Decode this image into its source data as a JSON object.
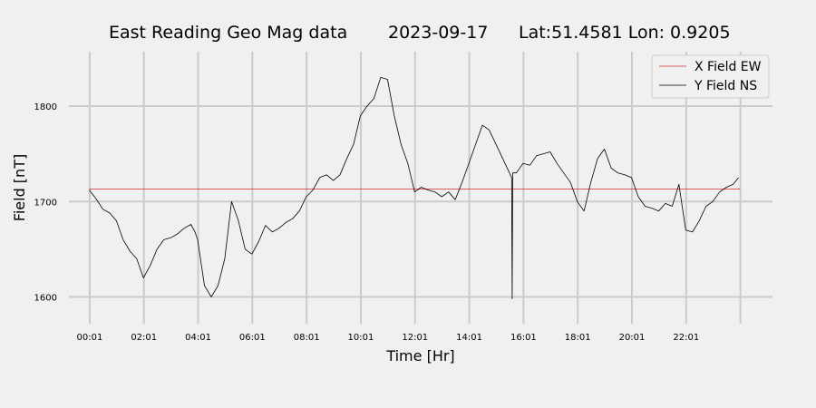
{
  "chart_data": {
    "type": "line",
    "title_parts": [
      "East Reading Geo Mag data",
      "2023-09-17",
      "Lat:51.4581  Lon: 0.9205"
    ],
    "xlabel": "Time  [Hr]",
    "ylabel": "Field  [nT]",
    "x_unit": "hours",
    "xlim": [
      -0.75,
      25.2
    ],
    "ylim": [
      1572,
      1857
    ],
    "x_ticks": [
      {
        "x": 0.0167,
        "label": "00:01"
      },
      {
        "x": 2.0167,
        "label": "02:01"
      },
      {
        "x": 4.0167,
        "label": "04:01"
      },
      {
        "x": 6.0167,
        "label": "06:01"
      },
      {
        "x": 8.0167,
        "label": "08:01"
      },
      {
        "x": 10.0167,
        "label": "10:01"
      },
      {
        "x": 12.0167,
        "label": "12:01"
      },
      {
        "x": 14.0167,
        "label": "14:01"
      },
      {
        "x": 16.0167,
        "label": "16:01"
      },
      {
        "x": 18.0167,
        "label": "18:01"
      },
      {
        "x": 20.0167,
        "label": "20:01"
      },
      {
        "x": 22.0167,
        "label": "22:01"
      }
    ],
    "x_gridlines": [
      0.0167,
      2.0167,
      4.0167,
      6.0167,
      8.0167,
      10.0167,
      12.0167,
      14.0167,
      16.0167,
      18.0167,
      20.0167,
      22.0167,
      24.0167
    ],
    "y_ticks": [
      1600,
      1700,
      1800
    ],
    "grid": true,
    "legend_position": "top-right",
    "series": [
      {
        "name": "X Field EW",
        "color": "#d62728",
        "x": [
          0.0,
          24.0
        ],
        "y": [
          1713,
          1713
        ]
      },
      {
        "name": "Y Field NS",
        "color": "#000000",
        "x": [
          0.0,
          0.25,
          0.5,
          0.75,
          1.0,
          1.25,
          1.5,
          1.75,
          2.0,
          2.25,
          2.5,
          2.75,
          3.0,
          3.25,
          3.5,
          3.75,
          3.9,
          4.0,
          4.25,
          4.5,
          4.75,
          5.0,
          5.25,
          5.5,
          5.75,
          6.0,
          6.25,
          6.5,
          6.75,
          7.0,
          7.25,
          7.5,
          7.75,
          8.0,
          8.25,
          8.5,
          8.75,
          9.0,
          9.25,
          9.5,
          9.75,
          10.0,
          10.25,
          10.5,
          10.75,
          11.0,
          11.25,
          11.5,
          11.75,
          12.0,
          12.25,
          12.5,
          12.75,
          13.0,
          13.25,
          13.5,
          13.75,
          14.0,
          14.25,
          14.5,
          14.75,
          15.0,
          15.25,
          15.5,
          15.58,
          15.6,
          15.62,
          15.75,
          16.0,
          16.25,
          16.5,
          16.75,
          17.0,
          17.25,
          17.5,
          17.75,
          18.0,
          18.25,
          18.5,
          18.75,
          19.0,
          19.25,
          19.5,
          19.75,
          20.0,
          20.25,
          20.5,
          20.75,
          21.0,
          21.25,
          21.5,
          21.75,
          22.0,
          22.25,
          22.5,
          22.75,
          23.0,
          23.25,
          23.5,
          23.75,
          23.95
        ],
        "y": [
          1712,
          1703,
          1692,
          1688,
          1680,
          1660,
          1648,
          1640,
          1620,
          1633,
          1650,
          1660,
          1662,
          1666,
          1672,
          1676,
          1668,
          1660,
          1612,
          1600,
          1612,
          1640,
          1700,
          1680,
          1650,
          1645,
          1658,
          1675,
          1668,
          1672,
          1678,
          1682,
          1690,
          1705,
          1712,
          1725,
          1728,
          1722,
          1728,
          1745,
          1760,
          1790,
          1800,
          1808,
          1830,
          1828,
          1790,
          1760,
          1740,
          1710,
          1715,
          1712,
          1710,
          1705,
          1710,
          1702,
          1720,
          1740,
          1760,
          1780,
          1775,
          1760,
          1745,
          1730,
          1725,
          1598,
          1730,
          1730,
          1740,
          1738,
          1748,
          1750,
          1752,
          1740,
          1730,
          1720,
          1700,
          1690,
          1720,
          1745,
          1755,
          1735,
          1730,
          1728,
          1725,
          1705,
          1695,
          1693,
          1690,
          1698,
          1695,
          1718,
          1670,
          1668,
          1680,
          1695,
          1700,
          1710,
          1715,
          1718,
          1725
        ]
      }
    ]
  }
}
